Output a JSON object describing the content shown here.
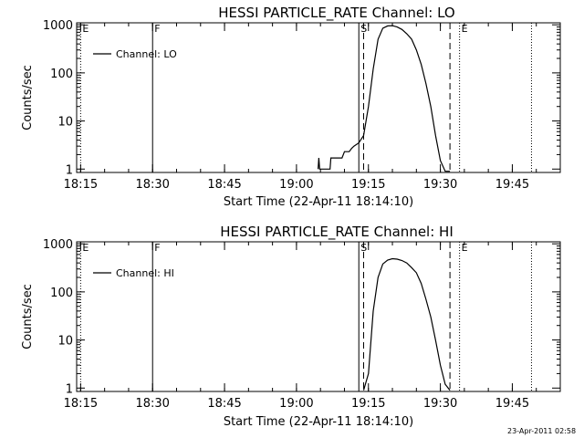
{
  "footer_timestamp": "23-Apr-2011 02:58",
  "chart_data": [
    {
      "type": "line",
      "title": "HESSI PARTICLE_RATE Channel: LO",
      "xlabel": "Start Time (22-Apr-11 18:14:10)",
      "ylabel": "Counts/sec",
      "yscale": "log",
      "ylim": [
        0.85,
        1100
      ],
      "xlim": [
        "18:14:10",
        "19:55:00"
      ],
      "x_tick_labels": [
        "18:15",
        "18:30",
        "18:45",
        "19:00",
        "19:15",
        "19:30",
        "19:45"
      ],
      "y_tick_labels": [
        "1",
        "10",
        "100",
        "1000"
      ],
      "legend": {
        "position": "top-left",
        "entries": [
          "Channel: LO"
        ]
      },
      "series": [
        {
          "name": "Channel: LO",
          "x": [
            "19:04:30",
            "19:04:40",
            "19:04:50",
            "19:05:00",
            "19:07:00",
            "19:07:10",
            "19:09:30",
            "19:10:00",
            "19:11:00",
            "19:11:30",
            "19:12:00",
            "19:13:00",
            "19:14:00",
            "19:15:00",
            "19:16:00",
            "19:17:00",
            "19:18:00",
            "19:19:00",
            "19:20:00",
            "19:21:00",
            "19:22:00",
            "19:23:00",
            "19:24:00",
            "19:25:00",
            "19:26:00",
            "19:27:00",
            "19:28:00",
            "19:29:00",
            "19:30:00",
            "19:31:00",
            "19:32:00"
          ],
          "values": [
            1,
            1.7,
            1,
            1,
            1,
            1.7,
            1.7,
            2.3,
            2.3,
            2.7,
            3,
            3.5,
            5,
            20,
            120,
            500,
            850,
            950,
            960,
            900,
            800,
            650,
            500,
            300,
            150,
            60,
            20,
            5,
            1.5,
            0.9,
            0.9
          ]
        }
      ],
      "markers": [
        {
          "label": "E",
          "time": "18:15:00",
          "style": "dotted"
        },
        {
          "label": "F",
          "time": "18:30:00",
          "style": "solid"
        },
        {
          "label": "S",
          "time": "19:13:00",
          "style": "solid"
        },
        {
          "label": "",
          "time": "19:14:00",
          "style": "dashed"
        },
        {
          "label": "",
          "time": "19:32:00",
          "style": "dashed"
        },
        {
          "label": "E",
          "time": "19:34:00",
          "style": "dotted"
        },
        {
          "label": "",
          "time": "19:49:00",
          "style": "dotted"
        }
      ]
    },
    {
      "type": "line",
      "title": "HESSI PARTICLE_RATE Channel: HI",
      "xlabel": "Start Time (22-Apr-11 18:14:10)",
      "ylabel": "Counts/sec",
      "yscale": "log",
      "ylim": [
        0.85,
        1100
      ],
      "xlim": [
        "18:14:10",
        "19:55:00"
      ],
      "x_tick_labels": [
        "18:15",
        "18:30",
        "18:45",
        "19:00",
        "19:15",
        "19:30",
        "19:45"
      ],
      "y_tick_labels": [
        "1",
        "10",
        "100",
        "1000"
      ],
      "legend": {
        "position": "top-left",
        "entries": [
          "Channel: HI"
        ]
      },
      "series": [
        {
          "name": "Channel: HI",
          "x": [
            "19:14:00",
            "19:15:00",
            "19:16:00",
            "19:17:00",
            "19:18:00",
            "19:19:00",
            "19:20:00",
            "19:21:00",
            "19:22:00",
            "19:23:00",
            "19:24:00",
            "19:25:00",
            "19:26:00",
            "19:27:00",
            "19:28:00",
            "19:29:00",
            "19:30:00",
            "19:31:00",
            "19:32:00"
          ],
          "values": [
            0.9,
            2,
            40,
            200,
            380,
            460,
            490,
            480,
            450,
            400,
            320,
            250,
            150,
            70,
            30,
            10,
            3,
            1.2,
            0.9
          ]
        }
      ],
      "markers": [
        {
          "label": "E",
          "time": "18:15:00",
          "style": "dotted"
        },
        {
          "label": "F",
          "time": "18:30:00",
          "style": "solid"
        },
        {
          "label": "S",
          "time": "19:13:00",
          "style": "solid"
        },
        {
          "label": "",
          "time": "19:14:00",
          "style": "dashed"
        },
        {
          "label": "",
          "time": "19:32:00",
          "style": "dashed"
        },
        {
          "label": "E",
          "time": "19:34:00",
          "style": "dotted"
        },
        {
          "label": "",
          "time": "19:49:00",
          "style": "dotted"
        }
      ]
    }
  ]
}
